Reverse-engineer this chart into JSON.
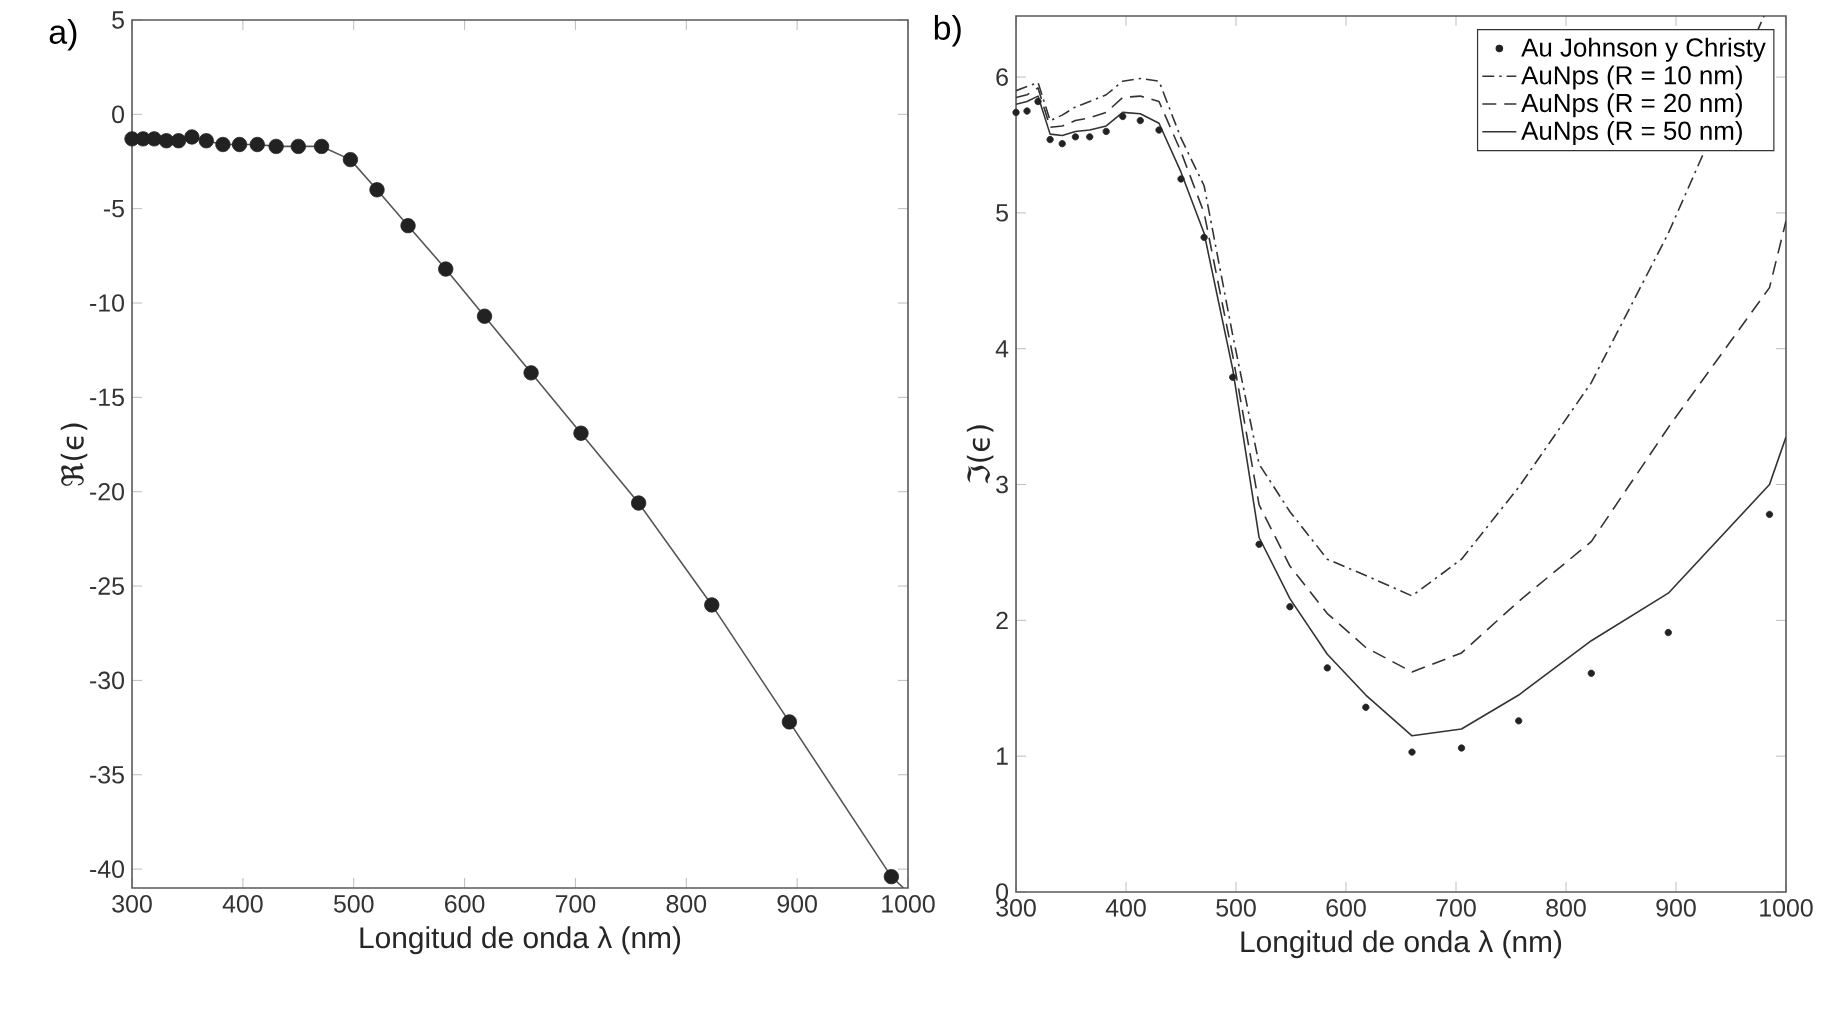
{
  "chart_data": [
    {
      "type": "line",
      "title": "a)",
      "xlabel": "Longitud de onda λ (nm)",
      "ylabel": "ℜ(ϵ)",
      "xlim": [
        300,
        1000
      ],
      "ylim": [
        -41,
        5
      ],
      "xticks": [
        300,
        400,
        500,
        600,
        700,
        800,
        900,
        1000
      ],
      "yticks": [
        5,
        0,
        -5,
        -10,
        -15,
        -20,
        -25,
        -30,
        -35,
        -40
      ],
      "legend": false,
      "series": [
        {
          "type": "scatter",
          "color": "#222222",
          "marker": "circle",
          "x": [
            300,
            310,
            320,
            331,
            342,
            354,
            367,
            382,
            397,
            413,
            430,
            450,
            471,
            497,
            521,
            549,
            583,
            618,
            660,
            705,
            757,
            823,
            893,
            985
          ],
          "values": [
            -1.3,
            -1.3,
            -1.3,
            -1.4,
            -1.4,
            -1.2,
            -1.4,
            -1.6,
            -1.6,
            -1.6,
            -1.7,
            -1.7,
            -1.7,
            -2.4,
            -4.0,
            -5.9,
            -8.2,
            -10.7,
            -13.7,
            -16.9,
            -20.6,
            -26.0,
            -32.2,
            -40.4
          ]
        },
        {
          "type": "line",
          "color": "#555555",
          "line_style": "solid",
          "marker": "none",
          "x": [
            300,
            310,
            320,
            331,
            342,
            354,
            367,
            382,
            397,
            413,
            430,
            450,
            471,
            497,
            521,
            549,
            583,
            618,
            660,
            705,
            757,
            823,
            893,
            985,
            996
          ],
          "values": [
            -1.3,
            -1.3,
            -1.3,
            -1.4,
            -1.4,
            -1.2,
            -1.4,
            -1.6,
            -1.6,
            -1.6,
            -1.7,
            -1.7,
            -1.7,
            -2.4,
            -4.0,
            -5.9,
            -8.2,
            -10.7,
            -13.7,
            -16.9,
            -20.6,
            -26.0,
            -32.2,
            -40.4,
            -41
          ]
        }
      ]
    },
    {
      "type": "line",
      "title": "b)",
      "xlabel": "Longitud de onda λ (nm)",
      "ylabel": "ℑ(ϵ)",
      "xlim": [
        300,
        1000
      ],
      "ylim": [
        0,
        6.45
      ],
      "xticks": [
        300,
        400,
        500,
        600,
        700,
        800,
        900,
        1000
      ],
      "yticks": [
        0,
        1,
        2,
        3,
        4,
        5,
        6
      ],
      "legend": "top right",
      "series": [
        {
          "type": "scatter",
          "name": "Au Johnson y Christy",
          "color": "#222222",
          "marker": "circle",
          "x": [
            300,
            310,
            320,
            331,
            342,
            354,
            367,
            382,
            397,
            413,
            430,
            450,
            471,
            497,
            521,
            549,
            583,
            618,
            660,
            705,
            757,
            823,
            893,
            985
          ],
          "values": [
            5.74,
            5.75,
            5.82,
            5.54,
            5.51,
            5.56,
            5.56,
            5.6,
            5.71,
            5.68,
            5.61,
            5.25,
            4.82,
            3.79,
            2.56,
            2.1,
            1.65,
            1.36,
            1.03,
            1.06,
            1.26,
            1.61,
            1.91,
            2.78
          ]
        },
        {
          "type": "line",
          "name": "AuNps (R = 10 nm)",
          "color": "#333333",
          "line_style": "dashdot",
          "marker": "none",
          "x": [
            300,
            310,
            320,
            331,
            342,
            354,
            367,
            382,
            397,
            413,
            430,
            450,
            471,
            497,
            521,
            549,
            583,
            618,
            660,
            705,
            757,
            823,
            893,
            980
          ],
          "values": [
            5.9,
            5.93,
            5.96,
            5.68,
            5.72,
            5.78,
            5.82,
            5.87,
            5.97,
            5.99,
            5.97,
            5.55,
            5.2,
            4.1,
            3.15,
            2.8,
            2.45,
            2.33,
            2.18,
            2.45,
            2.98,
            3.75,
            4.85,
            6.45
          ]
        },
        {
          "type": "line",
          "name": "AuNps (R = 20 nm)",
          "color": "#333333",
          "line_style": "dashed",
          "marker": "none",
          "x": [
            300,
            310,
            320,
            331,
            342,
            354,
            367,
            382,
            397,
            413,
            430,
            450,
            471,
            497,
            521,
            549,
            583,
            618,
            660,
            705,
            757,
            823,
            893,
            985,
            1000
          ],
          "values": [
            5.85,
            5.87,
            5.92,
            5.63,
            5.64,
            5.68,
            5.7,
            5.74,
            5.85,
            5.86,
            5.82,
            5.45,
            5.0,
            3.95,
            2.85,
            2.4,
            2.05,
            1.8,
            1.62,
            1.76,
            2.14,
            2.58,
            3.42,
            4.45,
            4.94
          ]
        },
        {
          "type": "line",
          "name": "AuNps (R = 50 nm)",
          "color": "#333333",
          "line_style": "solid",
          "marker": "none",
          "x": [
            300,
            310,
            320,
            331,
            342,
            354,
            367,
            382,
            397,
            413,
            430,
            450,
            471,
            497,
            521,
            549,
            583,
            618,
            660,
            705,
            757,
            823,
            893,
            985,
            1000
          ],
          "values": [
            5.8,
            5.82,
            5.86,
            5.58,
            5.57,
            5.6,
            5.61,
            5.64,
            5.74,
            5.73,
            5.66,
            5.3,
            4.85,
            3.85,
            2.61,
            2.16,
            1.75,
            1.45,
            1.15,
            1.2,
            1.45,
            1.85,
            2.2,
            3.0,
            3.35
          ]
        }
      ]
    }
  ]
}
